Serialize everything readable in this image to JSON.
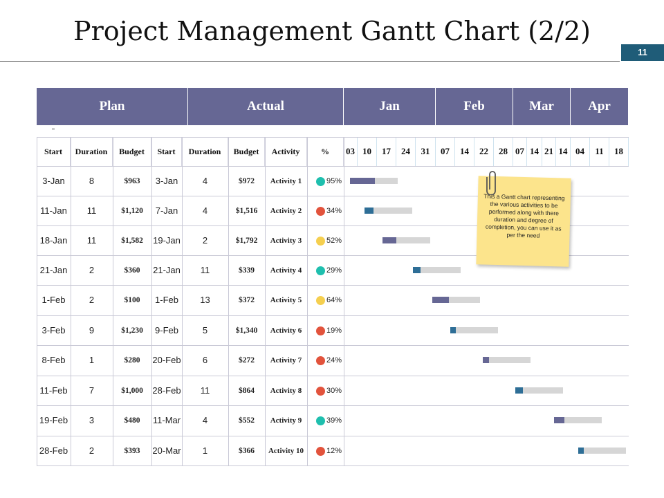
{
  "title": "Project Management Gantt Chart (2/2)",
  "page_number": "11",
  "groups": {
    "plan": "Plan",
    "actual": "Actual"
  },
  "months": [
    "Jan",
    "Feb",
    "Mar",
    "Apr"
  ],
  "columns": [
    "Start",
    "Duration",
    "Budget",
    "Start",
    "Duration",
    "Budget",
    "Activity",
    "%"
  ],
  "day_ticks": [
    "03",
    "10",
    "17",
    "24",
    "31",
    "07",
    "14",
    "22",
    "28",
    "07",
    "14",
    "21",
    "14",
    "04",
    "11",
    "18"
  ],
  "note_text": "This a Gantt chart representing the various activities to be performed along with there duration and degree of completion, you can use it as per the need",
  "colors": {
    "header": "#666794",
    "badge": "#1f5c78",
    "bar_purple": "#666794",
    "bar_blue": "#2e6e96",
    "bar_gray": "#d6d6d6",
    "teal": "#1fbfae",
    "red": "#e2533c",
    "yellow": "#f5cf4f",
    "note": "#fce48c"
  },
  "rows": [
    {
      "plan_start": "3-Jan",
      "plan_duration": "8",
      "plan_budget": "$963",
      "actual_start": "3-Jan",
      "actual_duration": "4",
      "actual_budget": "$972",
      "activity": "Activity 1",
      "percent": "95%",
      "dot_color": "#1fbfae"
    },
    {
      "plan_start": "11-Jan",
      "plan_duration": "11",
      "plan_budget": "$1,120",
      "actual_start": "7-Jan",
      "actual_duration": "4",
      "actual_budget": "$1,516",
      "activity": "Activity 2",
      "percent": "34%",
      "dot_color": "#e2533c"
    },
    {
      "plan_start": "18-Jan",
      "plan_duration": "11",
      "plan_budget": "$1,582",
      "actual_start": "19-Jan",
      "actual_duration": "2",
      "actual_budget": "$1,792",
      "activity": "Activity 3",
      "percent": "52%",
      "dot_color": "#f5cf4f"
    },
    {
      "plan_start": "21-Jan",
      "plan_duration": "2",
      "plan_budget": "$360",
      "actual_start": "21-Jan",
      "actual_duration": "11",
      "actual_budget": "$339",
      "activity": "Activity 4",
      "percent": "29%",
      "dot_color": "#1fbfae"
    },
    {
      "plan_start": "1-Feb",
      "plan_duration": "2",
      "plan_budget": "$100",
      "actual_start": "1-Feb",
      "actual_duration": "13",
      "actual_budget": "$372",
      "activity": "Activity 5",
      "percent": "64%",
      "dot_color": "#f5cf4f"
    },
    {
      "plan_start": "3-Feb",
      "plan_duration": "9",
      "plan_budget": "$1,230",
      "actual_start": "9-Feb",
      "actual_duration": "5",
      "actual_budget": "$1,340",
      "activity": "Activity 6",
      "percent": "19%",
      "dot_color": "#e2533c"
    },
    {
      "plan_start": "8-Feb",
      "plan_duration": "1",
      "plan_budget": "$280",
      "actual_start": "20-Feb",
      "actual_duration": "6",
      "actual_budget": "$272",
      "activity": "Activity 7",
      "percent": "24%",
      "dot_color": "#e2533c"
    },
    {
      "plan_start": "11-Feb",
      "plan_duration": "7",
      "plan_budget": "$1,000",
      "actual_start": "28-Feb",
      "actual_duration": "11",
      "actual_budget": "$864",
      "activity": "Activity 8",
      "percent": "30%",
      "dot_color": "#e2533c"
    },
    {
      "plan_start": "19-Feb",
      "plan_duration": "3",
      "plan_budget": "$480",
      "actual_start": "11-Mar",
      "actual_duration": "4",
      "actual_budget": "$552",
      "activity": "Activity 9",
      "percent": "39%",
      "dot_color": "#1fbfae"
    },
    {
      "plan_start": "28-Feb",
      "plan_duration": "2",
      "plan_budget": "$393",
      "actual_start": "20-Mar",
      "actual_duration": "1",
      "actual_budget": "$366",
      "activity": "Activity 10",
      "percent": "12%",
      "dot_color": "#e2533c"
    }
  ],
  "chart_data": {
    "type": "gantt",
    "x_ticks": [
      "03",
      "10",
      "17",
      "24",
      "31",
      "07",
      "14",
      "22",
      "28",
      "07",
      "14",
      "21",
      "14",
      "04",
      "11",
      "18"
    ],
    "months": [
      "Jan",
      "Feb",
      "Mar",
      "Apr"
    ],
    "tasks": [
      {
        "name": "Activity 1",
        "start": "3-Jan",
        "percent": 95,
        "progress_color": "#666794"
      },
      {
        "name": "Activity 2",
        "start": "7-Jan",
        "percent": 34,
        "progress_color": "#2e6e96"
      },
      {
        "name": "Activity 3",
        "start": "19-Jan",
        "percent": 52,
        "progress_color": "#666794"
      },
      {
        "name": "Activity 4",
        "start": "21-Jan",
        "percent": 29,
        "progress_color": "#2e6e96"
      },
      {
        "name": "Activity 5",
        "start": "1-Feb",
        "percent": 64,
        "progress_color": "#666794"
      },
      {
        "name": "Activity 6",
        "start": "9-Feb",
        "percent": 19,
        "progress_color": "#2e6e96"
      },
      {
        "name": "Activity 7",
        "start": "20-Feb",
        "percent": 24,
        "progress_color": "#666794"
      },
      {
        "name": "Activity 8",
        "start": "28-Feb",
        "percent": 30,
        "progress_color": "#2e6e96"
      },
      {
        "name": "Activity 9",
        "start": "11-Mar",
        "percent": 39,
        "progress_color": "#666794"
      },
      {
        "name": "Activity 10",
        "start": "20-Mar",
        "percent": 12,
        "progress_color": "#2e6e96"
      }
    ]
  }
}
